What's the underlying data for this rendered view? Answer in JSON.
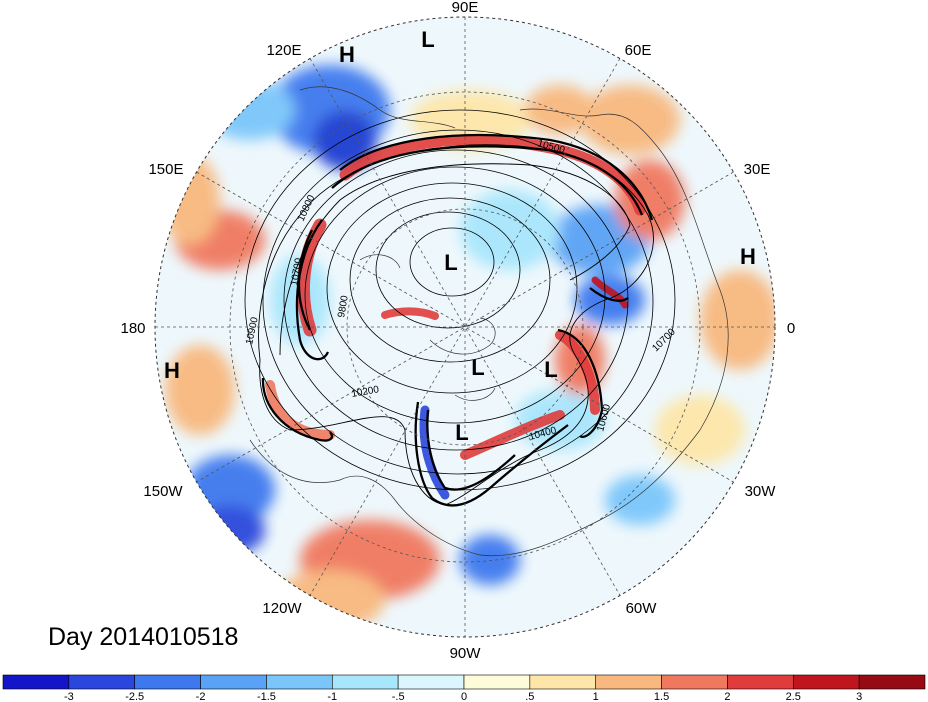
{
  "map": {
    "projection": "polar-stereographic",
    "hemisphere": "north",
    "longitude_labels": [
      "90E",
      "60E",
      "30E",
      "0",
      "30W",
      "60W",
      "90W",
      "120W",
      "150W",
      "180",
      "150E",
      "120E"
    ],
    "pressure_centers": [
      {
        "name": "high-center-top",
        "label": "H"
      },
      {
        "name": "low-center-top",
        "label": "L"
      },
      {
        "name": "high-center-right",
        "label": "H"
      },
      {
        "name": "high-center-left",
        "label": "H"
      },
      {
        "name": "low-center-arctic",
        "label": "L"
      },
      {
        "name": "low-center-greenland",
        "label": "L"
      },
      {
        "name": "low-center-atlantic",
        "label": "L"
      },
      {
        "name": "low-center-hudson",
        "label": "L"
      }
    ],
    "contour_labels": [
      "10500",
      "10800",
      "10700",
      "9800",
      "10900",
      "10200",
      "10400",
      "10600",
      "10700"
    ]
  },
  "caption": {
    "day_label": "Day 2014010518"
  },
  "colorbar": {
    "ticks": [
      "-3",
      "-2.5",
      "-2",
      "-1.5",
      "-1",
      "-.5",
      "0",
      ".5",
      "1",
      "1.5",
      "2",
      "2.5",
      "3"
    ],
    "colors": [
      "#1414c8",
      "#2b46dc",
      "#3d78ee",
      "#5aa2f5",
      "#7ac6fa",
      "#a8e6fc",
      "#dcf6fe",
      "#fefcd8",
      "#fde6a8",
      "#f8b87e",
      "#f0785e",
      "#e03c3c",
      "#c0141e",
      "#960a14"
    ]
  }
}
